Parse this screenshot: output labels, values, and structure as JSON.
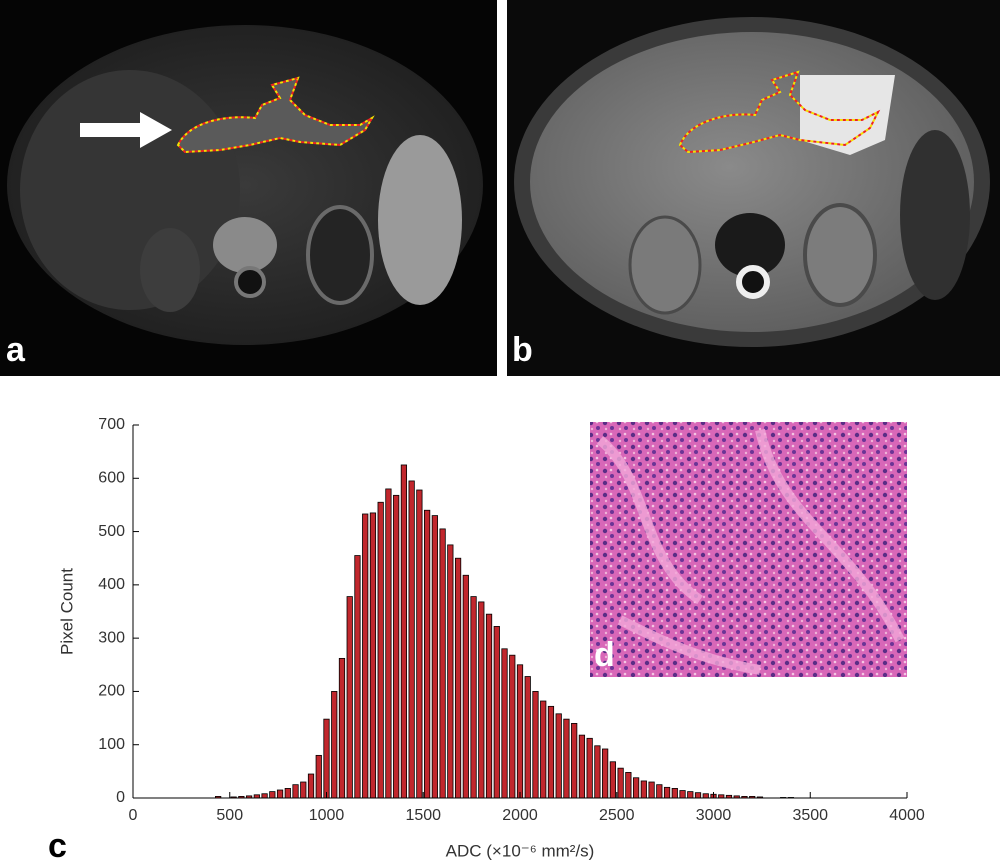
{
  "panel_labels": [
    "a",
    "b",
    "d"
  ],
  "chart_data": {
    "type": "histogram",
    "panel_label": "c",
    "xlabel": "ADC (×10⁻⁶ mm²/s)",
    "ylabel": "Pixel Count",
    "color": "#c1272d",
    "bins": [
      420,
      460,
      500,
      540,
      580,
      620,
      660,
      700,
      740,
      780,
      820,
      860,
      900,
      940,
      980,
      1020,
      1060,
      1100,
      1140,
      1180,
      1220,
      1260,
      1300,
      1340,
      1380,
      1420,
      1460,
      1500,
      1540,
      1580,
      1620,
      1660,
      1700,
      1740,
      1780,
      1820,
      1860,
      1900,
      1940,
      1980,
      2020,
      2060,
      2100,
      2140,
      2180,
      2220,
      2260,
      2300,
      2340,
      2380,
      2420,
      2460,
      2500,
      2540,
      2580,
      2620,
      2660,
      2700,
      2740,
      2780,
      2820,
      2860,
      2900,
      2940,
      2980,
      3020,
      3060,
      3100,
      3140,
      3180,
      3220,
      3260,
      3300,
      3340,
      3380,
      3420
    ],
    "values": [
      3,
      0,
      2,
      3,
      4,
      6,
      8,
      12,
      15,
      18,
      25,
      30,
      45,
      80,
      148,
      200,
      262,
      378,
      455,
      533,
      535,
      555,
      580,
      568,
      625,
      595,
      578,
      540,
      530,
      505,
      475,
      450,
      418,
      378,
      368,
      345,
      322,
      280,
      268,
      250,
      228,
      200,
      182,
      172,
      158,
      148,
      140,
      118,
      112,
      98,
      92,
      68,
      56,
      48,
      38,
      32,
      30,
      25,
      20,
      18,
      14,
      12,
      10,
      8,
      7,
      6,
      5,
      4,
      3,
      3,
      2,
      0,
      0,
      1,
      1
    ],
    "xlim": [
      0,
      4000
    ],
    "xticks": [
      0,
      500,
      1000,
      1500,
      2000,
      2500,
      3000,
      3500,
      4000
    ],
    "ylim": [
      0,
      700
    ],
    "yticks": [
      0,
      100,
      200,
      300,
      400,
      500,
      600,
      700
    ]
  }
}
